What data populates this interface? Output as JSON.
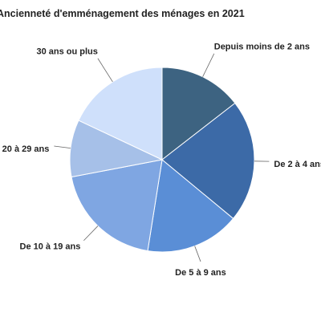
{
  "chart_data": {
    "type": "pie",
    "title": "Ancienneté d'emménagement des ménages en 2021",
    "categories": [
      "Depuis moins de 2 ans",
      "De 2 à 4 ans",
      "De 5 à 9 ans",
      "De 10 à 19 ans",
      "De 20 à 29 ans",
      "30 ans ou plus"
    ],
    "values": [
      14.5,
      21.5,
      16.5,
      19.5,
      10.0,
      18.0
    ],
    "colors": [
      "#3d6381",
      "#3c6aa7",
      "#5a8ed6",
      "#7fa6e2",
      "#a6c0e8",
      "#cfe0fb"
    ]
  }
}
